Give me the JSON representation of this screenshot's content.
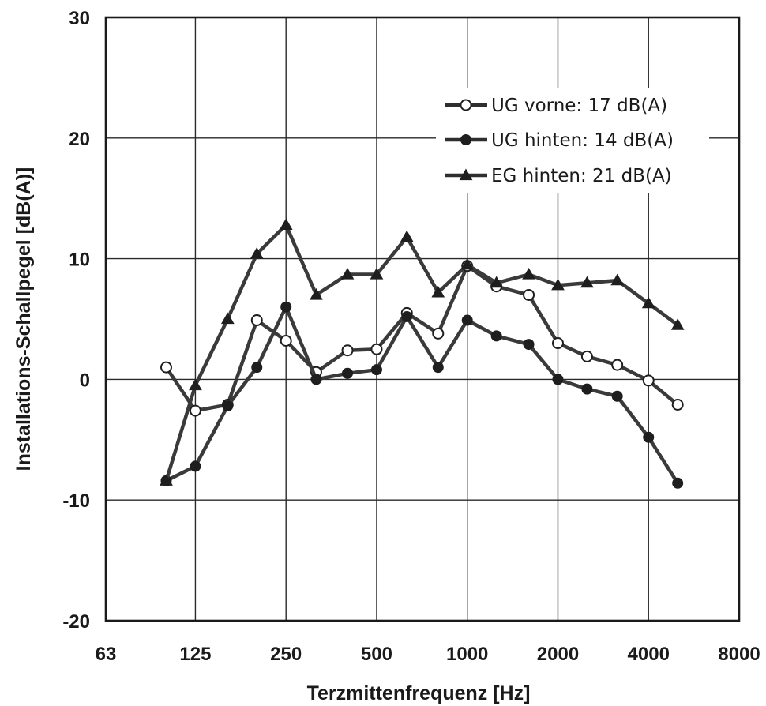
{
  "chart_data": {
    "type": "line",
    "xlabel": "Terzmittenfrequenz [Hz]",
    "ylabel": "Installations-Schallpegel [dB(A)]",
    "x_scale": "log2",
    "xlim": [
      63,
      8000
    ],
    "ylim": [
      -20,
      30
    ],
    "x_ticks": [
      63,
      125,
      250,
      500,
      1000,
      2000,
      4000,
      8000
    ],
    "x_tick_labels": [
      "63",
      "125",
      "250",
      "500",
      "1000",
      "2000",
      "4000",
      "8000"
    ],
    "y_ticks": [
      -20,
      -10,
      0,
      10,
      20,
      30
    ],
    "y_tick_labels": [
      "-20",
      "-10",
      "0",
      "10",
      "20",
      "30"
    ],
    "x": [
      100,
      125,
      160,
      200,
      250,
      315,
      400,
      500,
      630,
      800,
      1000,
      1250,
      1600,
      2000,
      2500,
      3150,
      4000,
      5000
    ],
    "grid": true,
    "legend_position": "top-right",
    "series": [
      {
        "name": "UG vorne: 17 dB(A)",
        "marker": "open-circle",
        "values": [
          1.0,
          -2.6,
          -2.1,
          4.9,
          3.2,
          0.6,
          2.4,
          2.5,
          5.5,
          3.8,
          9.4,
          7.7,
          7.0,
          3.0,
          1.9,
          1.2,
          -0.1,
          -2.1
        ]
      },
      {
        "name": "UG hinten: 14 dB(A)",
        "marker": "filled-circle",
        "values": [
          -8.4,
          -7.2,
          -2.2,
          1.0,
          6.0,
          0.0,
          0.5,
          0.8,
          5.2,
          1.0,
          4.9,
          3.6,
          2.9,
          0.0,
          -0.8,
          -1.4,
          -4.8,
          -8.6
        ]
      },
      {
        "name": "EG hinten: 21 dB(A)",
        "marker": "filled-triangle",
        "values": [
          -8.4,
          -0.5,
          5.0,
          10.4,
          12.8,
          7.0,
          8.7,
          8.7,
          11.8,
          7.2,
          9.5,
          8.0,
          8.7,
          7.8,
          8.0,
          8.2,
          6.3,
          4.5
        ]
      }
    ]
  }
}
